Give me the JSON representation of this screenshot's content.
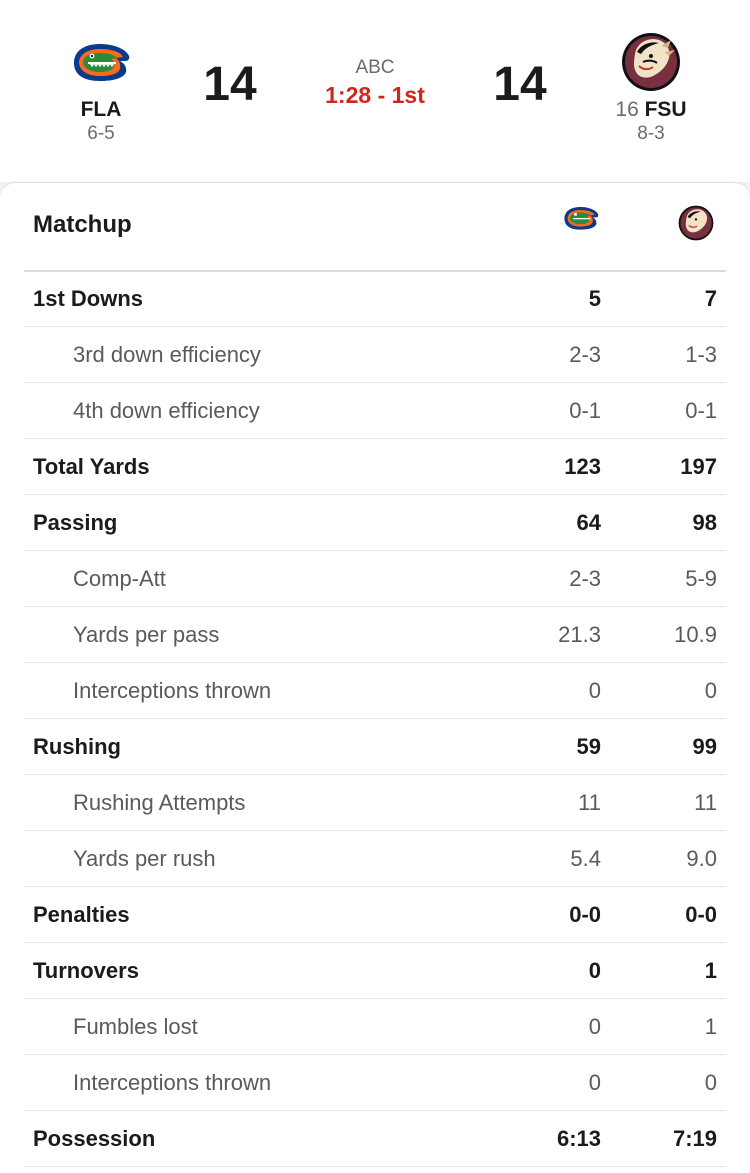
{
  "game": {
    "network": "ABC",
    "clock": "1:28 - 1st"
  },
  "away": {
    "abbr": "FLA",
    "record": "6-5",
    "score": "14",
    "logo_icon": "gator-head-icon",
    "colors": {
      "primary": "#0021a5",
      "secondary": "#fa4616"
    }
  },
  "home": {
    "rank": "16",
    "abbr": "FSU",
    "record": "8-3",
    "score": "14",
    "logo_icon": "seminole-head-icon",
    "colors": {
      "primary": "#782f40",
      "secondary": "#ceb888"
    }
  },
  "matchup": {
    "title": "Matchup",
    "rows": [
      {
        "label": "1st Downs",
        "away": "5",
        "home": "7",
        "type": "main"
      },
      {
        "label": "3rd down efficiency",
        "away": "2-3",
        "home": "1-3",
        "type": "sub"
      },
      {
        "label": "4th down efficiency",
        "away": "0-1",
        "home": "0-1",
        "type": "sub"
      },
      {
        "label": "Total Yards",
        "away": "123",
        "home": "197",
        "type": "main"
      },
      {
        "label": "Passing",
        "away": "64",
        "home": "98",
        "type": "main"
      },
      {
        "label": "Comp-Att",
        "away": "2-3",
        "home": "5-9",
        "type": "sub"
      },
      {
        "label": "Yards per pass",
        "away": "21.3",
        "home": "10.9",
        "type": "sub"
      },
      {
        "label": "Interceptions thrown",
        "away": "0",
        "home": "0",
        "type": "sub"
      },
      {
        "label": "Rushing",
        "away": "59",
        "home": "99",
        "type": "main"
      },
      {
        "label": "Rushing Attempts",
        "away": "11",
        "home": "11",
        "type": "sub"
      },
      {
        "label": "Yards per rush",
        "away": "5.4",
        "home": "9.0",
        "type": "sub"
      },
      {
        "label": "Penalties",
        "away": "0-0",
        "home": "0-0",
        "type": "main"
      },
      {
        "label": "Turnovers",
        "away": "0",
        "home": "1",
        "type": "main"
      },
      {
        "label": "Fumbles lost",
        "away": "0",
        "home": "1",
        "type": "sub"
      },
      {
        "label": "Interceptions thrown",
        "away": "0",
        "home": "0",
        "type": "sub"
      },
      {
        "label": "Possession",
        "away": "6:13",
        "home": "7:19",
        "type": "main"
      }
    ]
  }
}
